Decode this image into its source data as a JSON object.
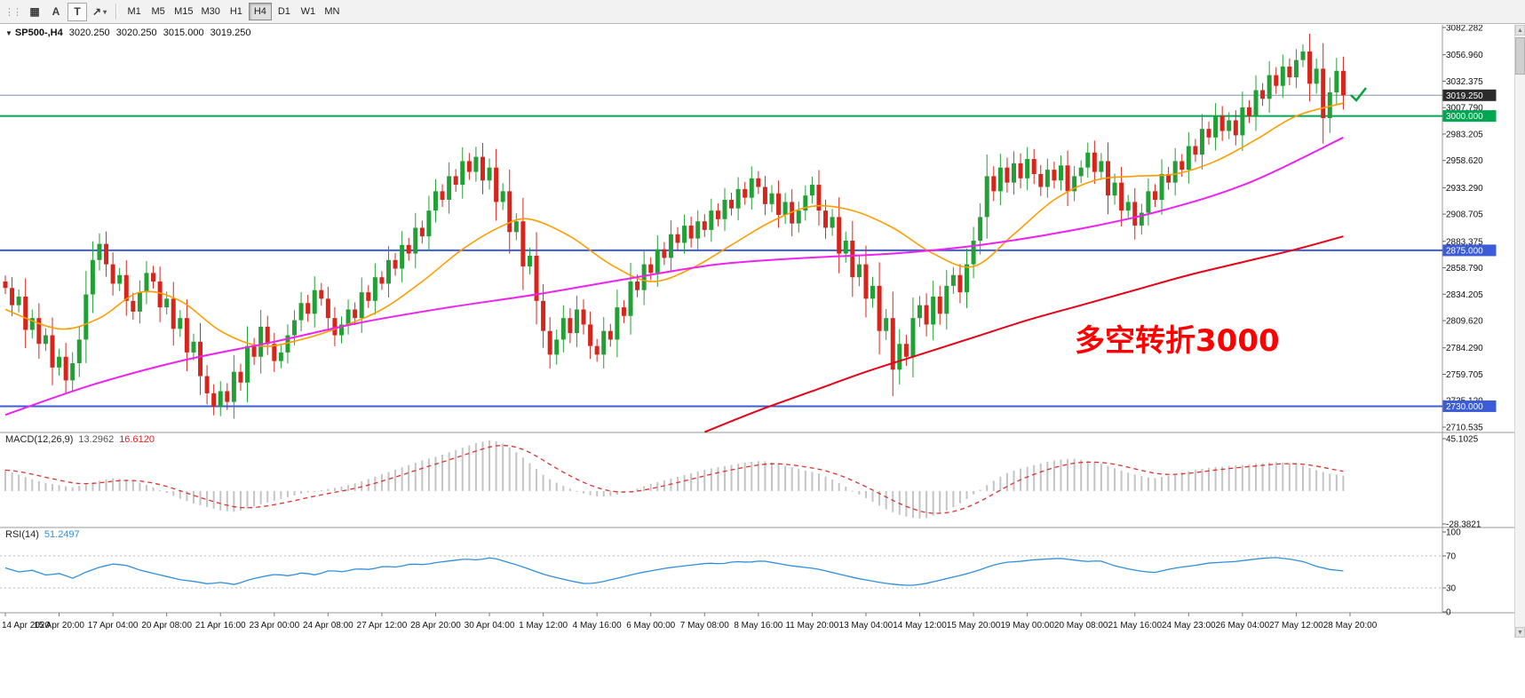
{
  "toolbar": {
    "tools": [
      {
        "name": "chart-window-button",
        "glyph": "▦",
        "dropdown": false
      },
      {
        "name": "text-annotation-button",
        "glyph": "A",
        "dropdown": false
      },
      {
        "name": "text-tool-button",
        "glyph": "T",
        "dropdown": false,
        "boxed": true
      },
      {
        "name": "drawing-tools-button",
        "glyph": "↗",
        "dropdown": true
      }
    ],
    "timeframes": [
      {
        "label": "M1",
        "active": false
      },
      {
        "label": "M5",
        "active": false
      },
      {
        "label": "M15",
        "active": false
      },
      {
        "label": "M30",
        "active": false
      },
      {
        "label": "H1",
        "active": false
      },
      {
        "label": "H4",
        "active": true
      },
      {
        "label": "D1",
        "active": false
      },
      {
        "label": "W1",
        "active": false
      },
      {
        "label": "MN",
        "active": false
      }
    ]
  },
  "chart": {
    "symbol_line": {
      "marker": "▼",
      "symbol": "SP500-,H4",
      "open": "3020.250",
      "high": "3020.250",
      "low": "3015.000",
      "close": "3019.250"
    },
    "annotation": {
      "text": "多空转折3000"
    },
    "price_axis_ticks": [
      "3082.282",
      "3056.960",
      "3032.375",
      "3007.790",
      "2983.205",
      "2958.620",
      "2933.290",
      "2908.705",
      "2883.375",
      "2858.790",
      "2834.205",
      "2809.620",
      "2784.290",
      "2759.705",
      "2735.120",
      "2710.535"
    ],
    "levels": [
      {
        "label": "3019.250",
        "price": 3019.25,
        "line_color": "#7d93a8",
        "tag_bg": "#2b2b2b",
        "width": 1
      },
      {
        "label": "3000.000",
        "price": 3000.0,
        "line_color": "#00a651",
        "tag_bg": "#00a651",
        "width": 2
      },
      {
        "label": "2875.000",
        "price": 2875.0,
        "line_color": "#3c5bd6",
        "tag_bg": "#3c5bd6",
        "width": 2
      },
      {
        "label": "2730.000",
        "price": 2730.0,
        "line_color": "#3c5bd6",
        "tag_bg": "#3c5bd6",
        "width": 2
      }
    ],
    "time_axis": [
      "14 Apr 2020",
      "15 Apr 20:00",
      "17 Apr 04:00",
      "20 Apr 08:00",
      "21 Apr 16:00",
      "23 Apr 00:00",
      "24 Apr 08:00",
      "27 Apr 12:00",
      "28 Apr 20:00",
      "30 Apr 04:00",
      "1 May 12:00",
      "4 May 16:00",
      "6 May 00:00",
      "7 May 08:00",
      "8 May 16:00",
      "11 May 20:00",
      "13 May 04:00",
      "14 May 12:00",
      "15 May 20:00",
      "19 May 00:00",
      "20 May 08:00",
      "21 May 16:00",
      "24 May 23:00",
      "26 May 04:00",
      "27 May 12:00",
      "28 May 20:00"
    ]
  },
  "chart_data": {
    "type": "candlestick",
    "symbol": "SP500-",
    "timeframe": "H4",
    "ohlc_current": {
      "open": 3020.25,
      "high": 3020.25,
      "low": 3015.0,
      "close": 3019.25
    },
    "price_range": [
      2710.535,
      3082.282
    ],
    "first_open": 2846,
    "closes": [
      2840,
      2824,
      2832,
      2801,
      2812,
      2788,
      2796,
      2766,
      2776,
      2754,
      2770,
      2792,
      2834,
      2866,
      2881,
      2862,
      2844,
      2852,
      2828,
      2818,
      2836,
      2854,
      2846,
      2822,
      2830,
      2802,
      2812,
      2780,
      2790,
      2758,
      2742,
      2730,
      2744,
      2734,
      2762,
      2752,
      2786,
      2776,
      2804,
      2788,
      2772,
      2780,
      2796,
      2810,
      2826,
      2816,
      2838,
      2830,
      2812,
      2796,
      2806,
      2820,
      2812,
      2836,
      2828,
      2850,
      2844,
      2866,
      2858,
      2880,
      2872,
      2896,
      2888,
      2912,
      2930,
      2922,
      2944,
      2936,
      2958,
      2948,
      2962,
      2940,
      2952,
      2920,
      2930,
      2892,
      2902,
      2860,
      2870,
      2828,
      2800,
      2778,
      2792,
      2812,
      2798,
      2820,
      2806,
      2786,
      2778,
      2800,
      2792,
      2822,
      2814,
      2846,
      2838,
      2862,
      2854,
      2876,
      2868,
      2890,
      2882,
      2898,
      2886,
      2902,
      2894,
      2912,
      2904,
      2922,
      2914,
      2932,
      2924,
      2942,
      2934,
      2918,
      2928,
      2908,
      2920,
      2900,
      2912,
      2926,
      2936,
      2912,
      2896,
      2906,
      2872,
      2884,
      2850,
      2862,
      2830,
      2842,
      2800,
      2812,
      2764,
      2788,
      2776,
      2812,
      2824,
      2806,
      2832,
      2816,
      2842,
      2852,
      2836,
      2862,
      2884,
      2906,
      2944,
      2930,
      2952,
      2938,
      2956,
      2942,
      2960,
      2946,
      2934,
      2950,
      2940,
      2954,
      2930,
      2944,
      2952,
      2966,
      2948,
      2958,
      2926,
      2938,
      2912,
      2920,
      2898,
      2910,
      2930,
      2922,
      2946,
      2938,
      2958,
      2950,
      2972,
      2964,
      2988,
      2980,
      3000,
      2986,
      2996,
      2982,
      3008,
      3000,
      3024,
      3016,
      3038,
      3028,
      3046,
      3036,
      3052,
      3060,
      3030,
      3044,
      2998,
      3022,
      3042,
      3019.25
    ],
    "moving_averages": [
      {
        "name": "ma-fast-orange",
        "color_key": "ma_fast",
        "points": [
          [
            0,
            2820
          ],
          [
            8,
            2802
          ],
          [
            14,
            2812
          ],
          [
            20,
            2836
          ],
          [
            26,
            2828
          ],
          [
            32,
            2800
          ],
          [
            38,
            2786
          ],
          [
            44,
            2792
          ],
          [
            50,
            2804
          ],
          [
            56,
            2820
          ],
          [
            62,
            2846
          ],
          [
            68,
            2876
          ],
          [
            74,
            2898
          ],
          [
            78,
            2904
          ],
          [
            84,
            2888
          ],
          [
            90,
            2862
          ],
          [
            96,
            2846
          ],
          [
            102,
            2858
          ],
          [
            108,
            2880
          ],
          [
            114,
            2902
          ],
          [
            120,
            2916
          ],
          [
            126,
            2912
          ],
          [
            132,
            2896
          ],
          [
            138,
            2872
          ],
          [
            144,
            2860
          ],
          [
            150,
            2890
          ],
          [
            156,
            2922
          ],
          [
            162,
            2940
          ],
          [
            168,
            2944
          ],
          [
            174,
            2946
          ],
          [
            180,
            2958
          ],
          [
            186,
            2978
          ],
          [
            192,
            3000
          ],
          [
            199,
            3012
          ]
        ]
      },
      {
        "name": "ma-medium-magenta",
        "color_key": "ma_mid",
        "points": [
          [
            0,
            2722
          ],
          [
            13,
            2750
          ],
          [
            26,
            2772
          ],
          [
            40,
            2790
          ],
          [
            53,
            2808
          ],
          [
            66,
            2822
          ],
          [
            79,
            2834
          ],
          [
            92,
            2848
          ],
          [
            106,
            2862
          ],
          [
            119,
            2868
          ],
          [
            132,
            2872
          ],
          [
            145,
            2880
          ],
          [
            159,
            2894
          ],
          [
            172,
            2912
          ],
          [
            185,
            2938
          ],
          [
            199,
            2980
          ]
        ]
      },
      {
        "name": "ma-slow-red",
        "color_key": "ma_slow",
        "points": [
          [
            104,
            2706
          ],
          [
            112,
            2726
          ],
          [
            120,
            2744
          ],
          [
            128,
            2762
          ],
          [
            136,
            2778
          ],
          [
            144,
            2794
          ],
          [
            152,
            2810
          ],
          [
            160,
            2824
          ],
          [
            168,
            2838
          ],
          [
            176,
            2852
          ],
          [
            184,
            2864
          ],
          [
            192,
            2876
          ],
          [
            199,
            2888
          ]
        ]
      }
    ],
    "macd": {
      "label": "MACD(12,26,9)",
      "value_main": "13.2962",
      "value_signal": "16.6120",
      "axis": [
        {
          "label": "45.1025",
          "value": 45.1025
        },
        {
          "label": "-28.3821",
          "value": -28.3821
        }
      ],
      "hist_samples": [
        18,
        14,
        10,
        7,
        5,
        3,
        6,
        9,
        11,
        10,
        7,
        3,
        -2,
        -7,
        -11,
        -14,
        -17,
        -18,
        -15,
        -11,
        -8,
        -5,
        -2,
        0,
        2,
        4,
        7,
        11,
        15,
        19,
        23,
        27,
        30,
        34,
        38,
        42,
        44,
        40,
        32,
        22,
        12,
        6,
        1,
        -3,
        -5,
        -4,
        -1,
        3,
        7,
        10,
        13,
        16,
        19,
        21,
        23,
        25,
        26,
        24,
        21,
        18,
        16,
        11,
        5,
        -2,
        -8,
        -15,
        -20,
        -23,
        -24,
        -20,
        -15,
        -8,
        0,
        8,
        15,
        19,
        22,
        25,
        27,
        28,
        26,
        24,
        20,
        16,
        13,
        11,
        13,
        16,
        18,
        20,
        21,
        22,
        23,
        24,
        25,
        24,
        22,
        18,
        15,
        13.3
      ]
    },
    "rsi": {
      "label": "RSI(14)",
      "value": "51.2497",
      "axis": [
        {
          "label": "100",
          "value": 100,
          "dashed": false
        },
        {
          "label": "70",
          "value": 70,
          "dashed": true
        },
        {
          "label": "30",
          "value": 30,
          "dashed": true
        },
        {
          "label": "0",
          "value": 0,
          "dashed": false
        }
      ],
      "samples": [
        55,
        50,
        52,
        46,
        48,
        42,
        50,
        56,
        60,
        58,
        52,
        48,
        44,
        40,
        38,
        35,
        37,
        34,
        40,
        44,
        47,
        45,
        49,
        46,
        52,
        50,
        54,
        53,
        57,
        56,
        60,
        59,
        62,
        64,
        66,
        65,
        68,
        63,
        58,
        52,
        46,
        42,
        38,
        35,
        37,
        41,
        45,
        49,
        52,
        55,
        57,
        59,
        61,
        60,
        63,
        62,
        64,
        61,
        58,
        56,
        54,
        50,
        46,
        42,
        39,
        36,
        34,
        33,
        35,
        39,
        43,
        47,
        52,
        58,
        62,
        63,
        65,
        66,
        67,
        65,
        63,
        64,
        58,
        54,
        51,
        49,
        53,
        56,
        58,
        61,
        62,
        63,
        65,
        67,
        68,
        66,
        63,
        57,
        53,
        51.25
      ]
    },
    "colors": {
      "bull": "#22a036",
      "bear": "#d8251c",
      "ma_fast": "#ff9c00",
      "ma_mid": "#ee22ee",
      "ma_slow": "#e80016",
      "macd_hist": "#c4c4c4",
      "macd_signal": "#e03131",
      "rsi": "#2f8fdf",
      "annotation": "#ff0000",
      "marker_green": "#00a43b"
    }
  }
}
